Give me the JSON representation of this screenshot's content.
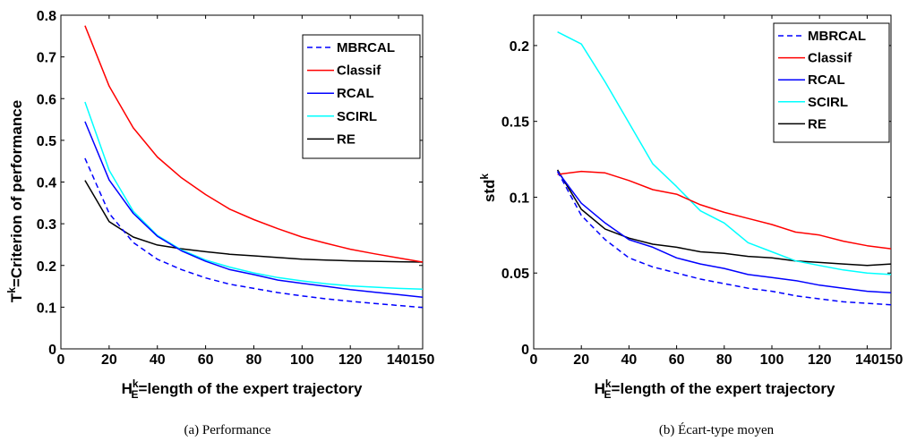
{
  "chart_data": [
    {
      "type": "line",
      "caption": "(a)  Performance",
      "ylabel_main": "T",
      "ylabel_sup": "k",
      "ylabel_rest": "=Criterion of performance",
      "xlabel_main": "H",
      "xlabel_sup": "k",
      "xlabel_sub": "E",
      "xlabel_rest": "=length of the expert trajectory",
      "xlim": [
        0,
        150
      ],
      "ylim": [
        0,
        0.8
      ],
      "xticks": [
        0,
        20,
        40,
        60,
        80,
        100,
        120,
        140,
        150
      ],
      "xtick_labels": [
        "0",
        "20",
        "40",
        "60",
        "80",
        "100",
        "120",
        "140",
        "150"
      ],
      "yticks": [
        0,
        0.1,
        0.2,
        0.3,
        0.4,
        0.5,
        0.6,
        0.7,
        0.8
      ],
      "ytick_labels": [
        "0",
        "0.1",
        "0.2",
        "0.3",
        "0.4",
        "0.5",
        "0.6",
        "0.7",
        "0.8"
      ],
      "legend_position": "top-right",
      "x": [
        10,
        20,
        30,
        40,
        50,
        60,
        70,
        80,
        90,
        100,
        110,
        120,
        130,
        140,
        150
      ],
      "series": [
        {
          "name": "MBRCAL",
          "color": "#0000ff",
          "dash": true,
          "values": [
            0.457,
            0.325,
            0.255,
            0.215,
            0.19,
            0.17,
            0.155,
            0.145,
            0.135,
            0.127,
            0.12,
            0.114,
            0.109,
            0.104,
            0.099
          ]
        },
        {
          "name": "Classif",
          "color": "#ff0000",
          "dash": false,
          "values": [
            0.775,
            0.63,
            0.53,
            0.46,
            0.41,
            0.37,
            0.335,
            0.31,
            0.288,
            0.268,
            0.253,
            0.239,
            0.228,
            0.218,
            0.208
          ]
        },
        {
          "name": "RCAL",
          "color": "#0000ff",
          "dash": false,
          "values": [
            0.545,
            0.405,
            0.325,
            0.27,
            0.235,
            0.21,
            0.19,
            0.178,
            0.165,
            0.157,
            0.15,
            0.142,
            0.136,
            0.13,
            0.124
          ]
        },
        {
          "name": "SCIRL",
          "color": "#00ffff",
          "dash": false,
          "values": [
            0.592,
            0.428,
            0.33,
            0.272,
            0.237,
            0.213,
            0.196,
            0.182,
            0.171,
            0.163,
            0.156,
            0.151,
            0.148,
            0.145,
            0.143
          ]
        },
        {
          "name": "RE",
          "color": "#000000",
          "dash": false,
          "values": [
            0.404,
            0.305,
            0.268,
            0.249,
            0.24,
            0.233,
            0.227,
            0.223,
            0.219,
            0.215,
            0.213,
            0.211,
            0.21,
            0.209,
            0.208
          ]
        }
      ]
    },
    {
      "type": "line",
      "caption": "(b)  Écart-type moyen",
      "ylabel_main": "std",
      "ylabel_sup": "k",
      "ylabel_rest": "",
      "xlabel_main": "H",
      "xlabel_sup": "k",
      "xlabel_sub": "E",
      "xlabel_rest": "=length of the expert trajectory",
      "xlim": [
        0,
        150
      ],
      "ylim": [
        0,
        0.22
      ],
      "xticks": [
        0,
        20,
        40,
        60,
        80,
        100,
        120,
        140,
        150
      ],
      "xtick_labels": [
        "0",
        "20",
        "40",
        "60",
        "80",
        "100",
        "120",
        "140",
        "150"
      ],
      "yticks": [
        0,
        0.05,
        0.1,
        0.15,
        0.2
      ],
      "ytick_labels": [
        "0",
        "0.05",
        "0.1",
        "0.15",
        "0.2"
      ],
      "legend_position": "top-right",
      "x": [
        10,
        20,
        30,
        40,
        50,
        60,
        70,
        80,
        90,
        100,
        110,
        120,
        130,
        140,
        150
      ],
      "series": [
        {
          "name": "MBRCAL",
          "color": "#0000ff",
          "dash": true,
          "values": [
            0.117,
            0.088,
            0.072,
            0.06,
            0.054,
            0.05,
            0.046,
            0.043,
            0.04,
            0.038,
            0.035,
            0.033,
            0.031,
            0.03,
            0.029
          ]
        },
        {
          "name": "Classif",
          "color": "#ff0000",
          "dash": false,
          "values": [
            0.115,
            0.117,
            0.116,
            0.111,
            0.105,
            0.102,
            0.095,
            0.09,
            0.086,
            0.082,
            0.077,
            0.075,
            0.071,
            0.068,
            0.066
          ]
        },
        {
          "name": "RCAL",
          "color": "#0000ff",
          "dash": false,
          "values": [
            0.117,
            0.096,
            0.083,
            0.072,
            0.067,
            0.06,
            0.056,
            0.053,
            0.049,
            0.047,
            0.045,
            0.042,
            0.04,
            0.038,
            0.037
          ]
        },
        {
          "name": "SCIRL",
          "color": "#00ffff",
          "dash": false,
          "values": [
            0.209,
            0.201,
            0.176,
            0.149,
            0.122,
            0.107,
            0.091,
            0.083,
            0.07,
            0.064,
            0.058,
            0.055,
            0.052,
            0.05,
            0.049
          ]
        },
        {
          "name": "RE",
          "color": "#000000",
          "dash": false,
          "values": [
            0.118,
            0.092,
            0.079,
            0.073,
            0.069,
            0.067,
            0.064,
            0.063,
            0.061,
            0.06,
            0.058,
            0.057,
            0.056,
            0.055,
            0.056
          ]
        }
      ]
    }
  ]
}
